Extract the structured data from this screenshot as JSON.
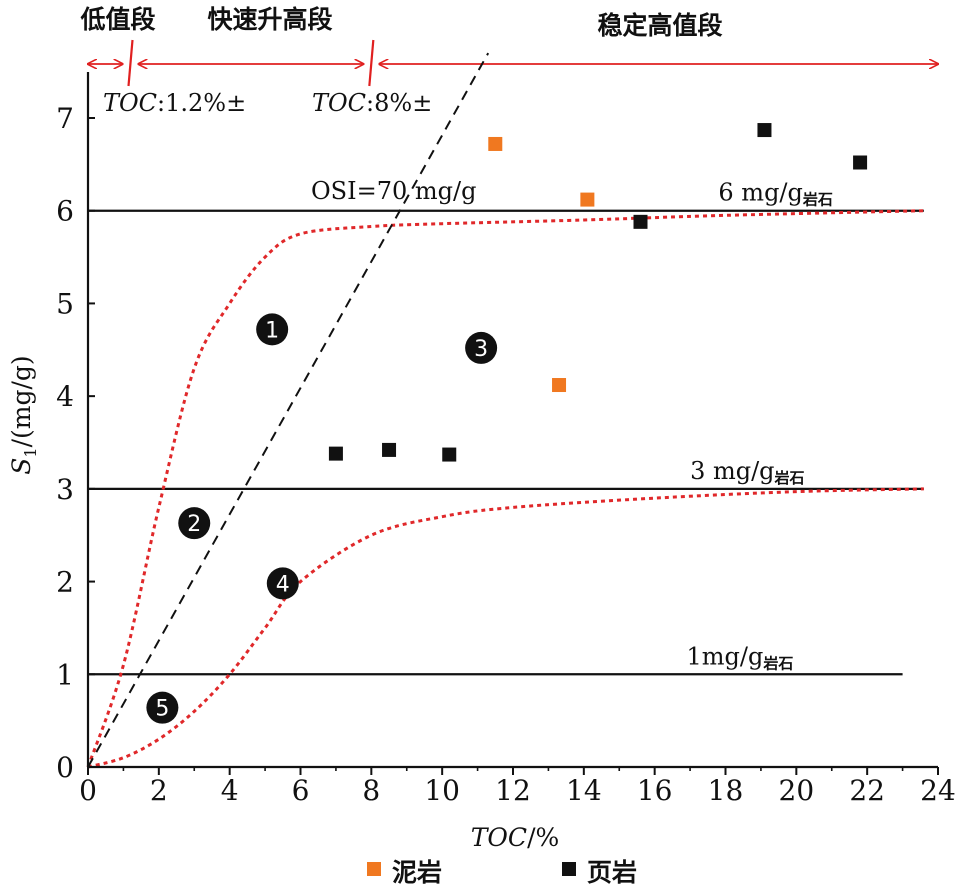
{
  "chart_data": {
    "type": "scatter",
    "xlabel": "TOC/%",
    "ylabel": "S1/(mg/g)",
    "xlim": [
      0,
      24
    ],
    "ylim": [
      0,
      7.5
    ],
    "xticks": [
      0,
      2,
      4,
      6,
      8,
      10,
      12,
      14,
      16,
      18,
      20,
      22,
      24
    ],
    "yticks": [
      0,
      1,
      2,
      3,
      4,
      5,
      6,
      7
    ],
    "series": [
      {
        "name": "泥岩",
        "marker": "square",
        "color": "#f07820",
        "points": [
          [
            11.5,
            6.72
          ],
          [
            14.1,
            6.12
          ],
          [
            13.3,
            4.12
          ]
        ]
      },
      {
        "name": "页岩",
        "marker": "square",
        "color": "#111111",
        "points": [
          [
            7.0,
            3.38
          ],
          [
            8.5,
            3.42
          ],
          [
            10.2,
            3.37
          ],
          [
            15.6,
            5.88
          ],
          [
            19.1,
            6.87
          ],
          [
            21.8,
            6.52
          ]
        ]
      }
    ],
    "reference_lines": [
      {
        "y": 6,
        "x_end": 23.6,
        "label": "6 mg/g",
        "label_sub": "岩石",
        "label_x": 17.8
      },
      {
        "y": 3,
        "x_end": 23.6,
        "label": "3 mg/g",
        "label_sub": "岩石",
        "label_x": 17.0
      },
      {
        "y": 1,
        "x_end": 23.0,
        "label": "1mg/g",
        "label_sub": "岩石",
        "label_x": 16.9
      }
    ],
    "osi_label": "OSI=70 mg/g",
    "osi_line": {
      "from": [
        0,
        0
      ],
      "to": [
        11.3,
        7.7
      ]
    },
    "curves": [
      {
        "name": "upper",
        "points": [
          [
            0,
            0
          ],
          [
            1,
            1.1
          ],
          [
            2,
            2.8
          ],
          [
            3,
            4.3
          ],
          [
            4,
            5.0
          ],
          [
            5,
            5.5
          ],
          [
            6,
            5.75
          ],
          [
            8,
            5.83
          ],
          [
            10,
            5.86
          ],
          [
            14,
            5.9
          ],
          [
            18,
            5.95
          ],
          [
            23.6,
            6.0
          ]
        ]
      },
      {
        "name": "lower",
        "points": [
          [
            0,
            0
          ],
          [
            1,
            0.1
          ],
          [
            2,
            0.3
          ],
          [
            3,
            0.6
          ],
          [
            4,
            1.0
          ],
          [
            5,
            1.5
          ],
          [
            6,
            2.0
          ],
          [
            8,
            2.5
          ],
          [
            10,
            2.7
          ],
          [
            12,
            2.8
          ],
          [
            16,
            2.9
          ],
          [
            20,
            2.97
          ],
          [
            23.6,
            3.0
          ]
        ]
      }
    ],
    "region_markers": [
      {
        "label": "1",
        "x": 5.2,
        "y": 4.72
      },
      {
        "label": "2",
        "x": 3.0,
        "y": 2.63
      },
      {
        "label": "3",
        "x": 11.1,
        "y": 4.52
      },
      {
        "label": "4",
        "x": 5.5,
        "y": 1.98
      },
      {
        "label": "5",
        "x": 2.1,
        "y": 0.64
      }
    ],
    "stages": [
      {
        "label": "低值段",
        "x_from": 0,
        "x_to": 1.2
      },
      {
        "label": "快速升高段",
        "x_from": 1.2,
        "x_to": 8
      },
      {
        "label": "稳定高值段",
        "x_from": 8,
        "x_to": 24
      }
    ],
    "thresholds": [
      {
        "prefix": "TOC",
        "text": ":1.2%±",
        "x": 1.2
      },
      {
        "prefix": "TOC",
        "text": ":8%±",
        "x": 8
      }
    ],
    "legend": {
      "position": "bottom",
      "items": [
        "泥岩",
        "页岩"
      ]
    },
    "grid": false
  }
}
